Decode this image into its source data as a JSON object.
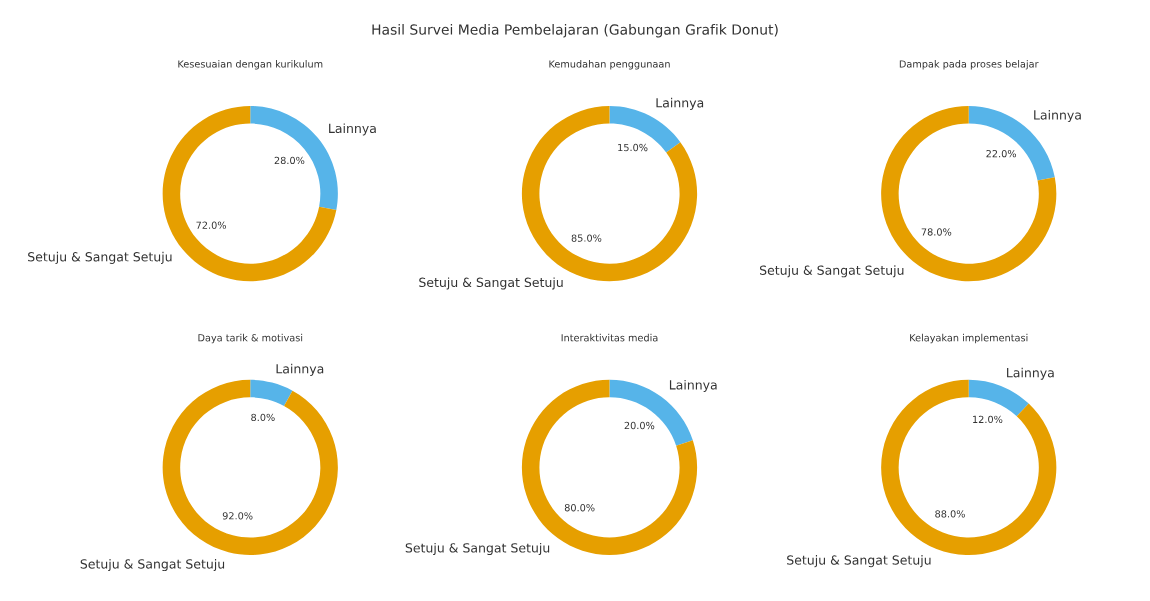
{
  "chart_data": [
    {
      "type": "donut",
      "title": "Kesesuaian dengan kurikulum",
      "categories": [
        "Lainnya",
        "Setuju & Sangat Setuju"
      ],
      "values": [
        28,
        72
      ],
      "colors": [
        "#56b4e9",
        "#e69f00"
      ],
      "value_labels": [
        "28.0%",
        "72.0%"
      ]
    },
    {
      "type": "donut",
      "title": "Kemudahan penggunaan",
      "categories": [
        "Lainnya",
        "Setuju & Sangat Setuju"
      ],
      "values": [
        15,
        85
      ],
      "colors": [
        "#56b4e9",
        "#e69f00"
      ],
      "value_labels": [
        "15.0%",
        "85.0%"
      ]
    },
    {
      "type": "donut",
      "title": "Dampak pada proses belajar",
      "categories": [
        "Lainnya",
        "Setuju & Sangat Setuju"
      ],
      "values": [
        22,
        78
      ],
      "colors": [
        "#56b4e9",
        "#e69f00"
      ],
      "value_labels": [
        "22.0%",
        "78.0%"
      ]
    },
    {
      "type": "donut",
      "title": "Daya tarik & motivasi",
      "categories": [
        "Lainnya",
        "Setuju & Sangat Setuju"
      ],
      "values": [
        8,
        92
      ],
      "colors": [
        "#56b4e9",
        "#e69f00"
      ],
      "value_labels": [
        "8.0%",
        "92.0%"
      ]
    },
    {
      "type": "donut",
      "title": "Interaktivitas media",
      "categories": [
        "Lainnya",
        "Setuju & Sangat Setuju"
      ],
      "values": [
        20,
        80
      ],
      "colors": [
        "#56b4e9",
        "#e69f00"
      ],
      "value_labels": [
        "20.0%",
        "80.0%"
      ]
    },
    {
      "type": "donut",
      "title": "Kelayakan implementasi",
      "categories": [
        "Lainnya",
        "Setuju & Sangat Setuju"
      ],
      "values": [
        12,
        88
      ],
      "colors": [
        "#56b4e9",
        "#e69f00"
      ],
      "value_labels": [
        "12.0%",
        "88.0%"
      ],
      "annotations": [
        "Hasil Survei Media Pembelajaran (Gabungan Grafik Donut)"
      ]
    }
  ]
}
